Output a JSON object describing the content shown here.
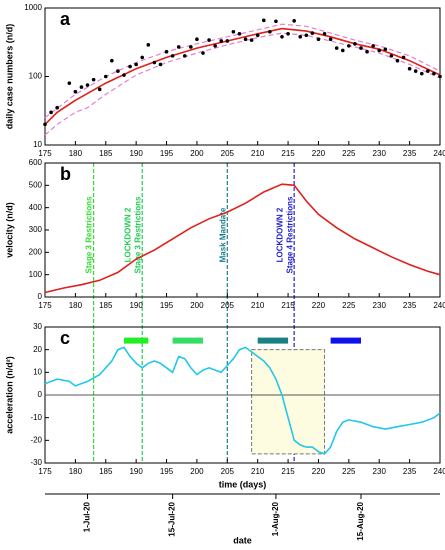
{
  "chart_data": [
    {
      "type": "line",
      "panel": "a",
      "ylabel": "daily case numbers (n/d)",
      "log_y": true,
      "xlim": [
        175,
        240
      ],
      "xticks": [
        175,
        180,
        185,
        190,
        195,
        200,
        205,
        210,
        215,
        220,
        225,
        230,
        235,
        240
      ],
      "ylim": [
        10,
        1000
      ],
      "yticks": [
        10,
        100,
        1000
      ],
      "series": [
        {
          "style": "dashed",
          "color": "#e57fcf",
          "x": [
            175,
            180,
            185,
            190,
            195,
            200,
            205,
            210,
            214,
            218,
            222,
            226,
            230,
            235,
            240
          ],
          "values": [
            25,
            55,
            100,
            160,
            230,
            300,
            380,
            480,
            580,
            540,
            430,
            340,
            280,
            200,
            120
          ]
        },
        {
          "style": "dashed",
          "color": "#e57fcf",
          "x": [
            175,
            177,
            180,
            182,
            185,
            190,
            195,
            200,
            205,
            210,
            214,
            218,
            222,
            226,
            230,
            235,
            240
          ],
          "values": [
            14,
            20,
            30,
            35,
            55,
            105,
            160,
            220,
            290,
            370,
            430,
            400,
            330,
            270,
            220,
            150,
            95
          ]
        },
        {
          "style": "line",
          "color": "#e0201b",
          "x": [
            175,
            177,
            180,
            185,
            190,
            195,
            200,
            205,
            210,
            214,
            218,
            222,
            226,
            230,
            235,
            240
          ],
          "values": [
            20,
            30,
            45,
            80,
            130,
            190,
            260,
            330,
            420,
            500,
            460,
            380,
            300,
            250,
            170,
            105
          ]
        },
        {
          "style": "points",
          "color": "#000000",
          "x": [
            175,
            176,
            177,
            179,
            180,
            181,
            182,
            183,
            184,
            185,
            186,
            187,
            188,
            189,
            190,
            191,
            192,
            193,
            194,
            195,
            196,
            197,
            198,
            199,
            200,
            201,
            202,
            203,
            204,
            205,
            206,
            207,
            208,
            209,
            210,
            211,
            212,
            213,
            214,
            215,
            216,
            217,
            218,
            219,
            220,
            221,
            222,
            223,
            224,
            225,
            226,
            227,
            228,
            229,
            230,
            231,
            232,
            233,
            234,
            235,
            236,
            237,
            238,
            239,
            240
          ],
          "values": [
            20,
            30,
            35,
            80,
            60,
            70,
            75,
            90,
            65,
            100,
            170,
            120,
            105,
            140,
            150,
            190,
            290,
            160,
            150,
            230,
            200,
            270,
            200,
            270,
            350,
            220,
            340,
            280,
            330,
            330,
            450,
            420,
            350,
            340,
            400,
            660,
            450,
            640,
            380,
            420,
            650,
            380,
            400,
            430,
            350,
            420,
            350,
            260,
            240,
            280,
            300,
            260,
            230,
            280,
            240,
            250,
            200,
            170,
            190,
            130,
            120,
            110,
            120,
            110,
            100
          ]
        }
      ]
    },
    {
      "type": "line",
      "panel": "b",
      "ylabel": "velocity (n/d)",
      "xlim": [
        175,
        240
      ],
      "xticks": [
        175,
        180,
        185,
        190,
        195,
        200,
        205,
        210,
        215,
        220,
        225,
        230,
        235,
        240
      ],
      "ylim": [
        0,
        600
      ],
      "yticks": [
        0,
        100,
        200,
        300,
        400,
        500,
        600
      ],
      "series": [
        {
          "style": "line",
          "color": "#e0201b",
          "x": [
            175,
            178,
            181,
            184,
            187,
            190,
            193,
            196,
            199,
            202,
            205,
            208,
            211,
            214,
            216,
            218,
            220,
            223,
            226,
            229,
            232,
            235,
            238,
            240
          ],
          "values": [
            20,
            40,
            55,
            75,
            110,
            170,
            210,
            260,
            310,
            350,
            380,
            420,
            470,
            505,
            500,
            430,
            370,
            310,
            260,
            220,
            180,
            145,
            115,
            100
          ]
        }
      ],
      "events": [
        {
          "x": 183,
          "color": "#33dd33",
          "lines": [
            "Stage 3 Restrictions"
          ]
        },
        {
          "x": 191,
          "color": "#22cc55",
          "lines": [
            "LOCKDOWN 2",
            "Stage 3 Restrictions"
          ]
        },
        {
          "x": 205,
          "color": "#1a7f8a",
          "lines": [
            "Mask Mandate"
          ]
        },
        {
          "x": 216,
          "color": "#2222cc",
          "lines": [
            "LOCKDOWN 2",
            "Stage 4 Restrictions"
          ]
        }
      ]
    },
    {
      "type": "line",
      "panel": "c",
      "ylabel": "acceleration (n/d²)",
      "xlabel": "time (days)",
      "xlim": [
        175,
        240
      ],
      "xticks": [
        175,
        180,
        185,
        190,
        195,
        200,
        205,
        210,
        215,
        220,
        225,
        230,
        235,
        240
      ],
      "ylim": [
        -30,
        30
      ],
      "yticks": [
        -30,
        -20,
        -10,
        0,
        10,
        20,
        30
      ],
      "reference_line": 0,
      "series": [
        {
          "style": "line",
          "color": "#22c8e8",
          "x": [
            175,
            177,
            179,
            180,
            182,
            184,
            186,
            187,
            188,
            189,
            190,
            191,
            192,
            193,
            194,
            195,
            196,
            197,
            198,
            199,
            200,
            201,
            202,
            203,
            204,
            205,
            206,
            207,
            208,
            209,
            210,
            211,
            212,
            213,
            214,
            215,
            216,
            217,
            218,
            219,
            220,
            221,
            222,
            223,
            224,
            225,
            227,
            229,
            231,
            233,
            235,
            237,
            239,
            240
          ],
          "values": [
            5,
            7,
            6,
            4,
            6,
            9,
            15,
            20,
            21,
            17,
            14,
            12,
            14,
            15,
            14,
            12,
            10,
            17,
            16,
            12,
            9,
            11,
            12,
            11,
            10,
            13,
            16,
            20,
            21,
            19,
            17,
            15,
            12,
            7,
            0,
            -10,
            -20,
            -22,
            -23,
            -23,
            -25,
            -26,
            -23,
            -16,
            -12,
            -11,
            -12,
            -14,
            -15,
            -14,
            -13,
            -12,
            -10,
            -8
          ]
        }
      ],
      "intervals": [
        {
          "x": [
            188,
            192
          ],
          "y": 24,
          "color": "#22ee22"
        },
        {
          "x": [
            196,
            201
          ],
          "y": 24,
          "color": "#33dd66"
        },
        {
          "x": [
            210,
            215
          ],
          "y": 24,
          "color": "#1a8080"
        },
        {
          "x": [
            222,
            227
          ],
          "y": 24,
          "color": "#1111ee"
        }
      ],
      "box": {
        "x": [
          209,
          221
        ],
        "y": [
          -26,
          20
        ]
      },
      "date_axis": {
        "label": "date",
        "ticks": [
          {
            "value": 182,
            "label": "1-Jul-20"
          },
          {
            "value": 196,
            "label": "15-Jul-20"
          },
          {
            "value": 213,
            "label": "1-Aug-20"
          },
          {
            "value": 227,
            "label": "15-Aug-20"
          }
        ]
      }
    }
  ]
}
